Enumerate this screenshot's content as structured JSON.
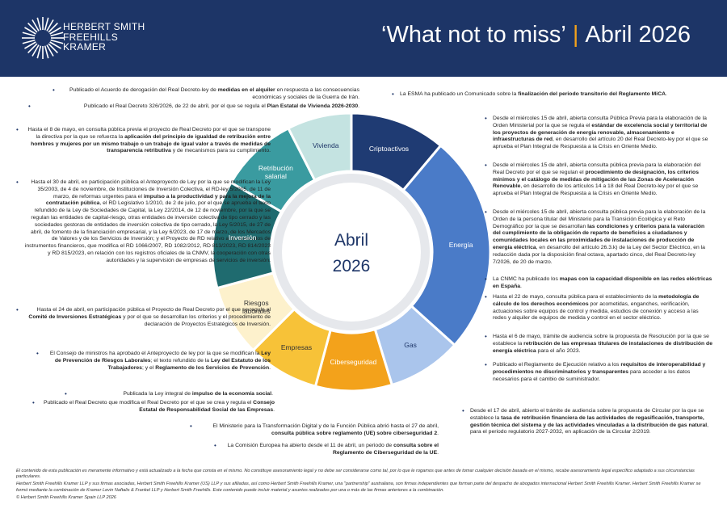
{
  "header": {
    "logo": [
      "HERBERT SMITH",
      "FREEHILLS",
      "KRAMER"
    ],
    "title": "‘What not to miss’",
    "separator": "|",
    "date": "Abril 2026"
  },
  "center": [
    "Abril",
    "2026"
  ],
  "segments": [
    "Criptoactivos",
    "Energía",
    "Gas",
    "Ciberseguridad",
    "Empresas",
    "Riesgos laborales",
    "Inversión",
    "Retribución salarial",
    "Vivienda"
  ],
  "notes": [
    {
      "runs": [
        "Publicado el Acuerdo de derogación del Real Decreto-ley de ",
        "medidas en el alquiler",
        " en respuesta a las consecuencias económicas y sociales de la Guerra de Irán."
      ]
    },
    {
      "runs": [
        "Publicado el Real Decreto 326/2026, de 22 de abril, por el que se regula el ",
        "Plan Estatal de Vivienda 2026-2030",
        "."
      ]
    },
    {
      "runs": [
        "Hasta el 8 de mayo, en consulta pública previa el proyecto de Real Decreto por el que se transpone la directiva por la que se refuerza la ",
        "aplicación del principio de igualdad de retribución entre hombres y mujeres por un mismo trabajo o un trabajo de igual valor a través de medidas de transparencia retributiva",
        " y de mecanismos para su cumplimiento."
      ]
    },
    {
      "runs": [
        "Hasta el 30 de abril, en participación pública el Anteproyecto de Ley por la que se modifican la Ley 35/2003, de 4 de noviembre, de Instituciones de Inversión Colectiva, el RD-ley 5/2005, de 11 de marzo, de reformas urgentes para el ",
        "impulso a la productividad y para la mejora de la contratación pública",
        ", el RD Legislativo 1/2010, de 2 de julio, por el que se aprueba el texto refundido de la Ley de Sociedades de Capital, la Ley 22/2014, de 12 de noviembre, por la que se regulan las entidades de capital-riesgo, otras entidades de inversión colectiva de tipo cerrado y las sociedades gestoras de entidades de inversión colectiva de tipo cerrado, la Ley 5/2015, de 27 de abril, de fomento de la financiación empresarial, y la Ley 6/2023, de 17 de marzo, de los Mercados de Valores y de los Servicios de Inversión; y el Proyecto de RD relativo a los mercados de instrumentos financieros, que modifica el RD 1066/2007, RD 1082/2012, RD 813/2023, RD 814/2023 y RD 815/2023, en relación con los registros oficiales de la CNMV, la cooperación con otras autoridades y la supervisión de empresas de servicios de inversión."
      ]
    },
    {
      "runs": [
        "Hasta el 24 de abril, en participación pública el Proyecto de Real Decreto por el que se regula el ",
        "Comité de Inversiones Estratégicas",
        " y por el que se desarrollan los criterios y el procedimiento de declaración de Proyectos Estratégicos de Inversión."
      ]
    },
    {
      "runs": [
        "El Consejo de ministros ha aprobado el Anteproyecto de ley por la que se modifican la ",
        "Ley de Prevención de Riesgos Laborales",
        "; el texto refundido de la ",
        "Ley del Estatuto de los Trabajadores",
        "; y el ",
        "Reglamento de los Servicios de Prevención",
        "."
      ]
    },
    {
      "runs": [
        "Publicada la Ley integral de ",
        "impulso de la economía social",
        "."
      ]
    },
    {
      "runs": [
        "Publicado el Real Decreto que modifica el Real Decreto por el que se crea y regula el ",
        "Consejo Estatal de Responsabilidad Social de las Empresas",
        "."
      ]
    },
    {
      "runs": [
        "El Ministerio para la Transformación Digital y de la Función Pública abrió hasta el 27 de abril, ",
        "consulta pública sobre reglamento (UE) sobre ciberseguridad 2",
        "."
      ]
    },
    {
      "runs": [
        "La Comisión Europea ha abierto desde el 11 de abril, un periodo de ",
        "consulta sobre el Reglamento de Ciberseguridad de la UE",
        "."
      ]
    },
    {
      "runs": [
        "La ESMA ha publicado un Comunicado sobre la ",
        "finalización del periodo transitorio del Reglamento MiCA",
        "."
      ]
    },
    {
      "runs": [
        "Desde el miércoles 15 de abril, abierta consulta Pública Previa para la elaboración de la Orden Ministerial por la que se regula el ",
        "estándar de excelencia social y territorial de los proyectos de generación de energía renovable, almacenamiento e infraestructuras de red",
        ", en desarrollo del artículo 20 del Real Decreto-ley por el que se aprueba el Plan Integral de Respuesta a la Crisis en Oriente Medio."
      ]
    },
    {
      "runs": [
        "Desde el miércoles 15 de abril, abierta consulta pública previa para la elaboración del Real Decreto por el que se regulan el ",
        "procedimiento de designación, los criterios mínimos y el catálogo de medidas de mitigación de las Zonas de Aceleración Renovable",
        ", en desarrollo de los artículos 14 a 18 del Real Decreto-ley por el que se aprueba el Plan Integral de Respuesta a la Crisis en Oriente Medio."
      ]
    },
    {
      "runs": [
        "Desde el miércoles 15 de abril, abierta consulta pública previa para la elaboración de la Orden de la persona titular del Ministerio para la Transición Ecológica y el Reto Demográfico por la que se desarrollan ",
        "las condiciones y criterios para la valoración del cumplimiento de la obligación de reparto de beneficios a ciudadanos y comunidades locales en las proximidades de instalaciones de producción de energía eléctrica",
        ", en desarrollo del artículo 26.3.k) de la Ley del Sector Eléctrico, en la redacción dada por la disposición final octava, apartado cinco, del Real Decreto-ley 7/2026, de 20 de marzo."
      ]
    },
    {
      "runs": [
        "La CNMC ha publicado los ",
        "mapas con la capacidad disponible en las redes eléctricas en España",
        "."
      ]
    },
    {
      "runs": [
        "Hasta el 22 de mayo, consulta pública para el establecimiento de la ",
        "metodología de cálculo de los derechos económicos",
        " por acometidas, enganches, verificación, actuaciones sobre equipos de control y medida, estudios de conexión y acceso a las redes y alquiler de equipos de medida y control en el sector eléctrico."
      ]
    },
    {
      "runs": [
        "Hasta el 6 de mayo, trámite de audiencia sobre la propuesta de Resolución por la que se establece la ",
        "retribución de las empresas titulares de instalaciones de distribución de energía eléctrica",
        " para el año 2023."
      ]
    },
    {
      "runs": [
        "Publicado el Reglamento de Ejecución relativo a los ",
        "requisitos de interoperabilidad y procedimientos no discriminatorios y transparentes",
        " para acceder a los datos necesarios para el cambio de suministrador."
      ]
    },
    {
      "runs": [
        "Desde el 17 de abril, abierto el trámite de audiencia sobre la propuesta de Circular por la que se establece la ",
        "tasa de retribución financiera de las actividades de regasificación, transporte, gestión técnica del sistema y de las actividades vinculadas a la distribución de gas natural",
        ", para el periodo regulatorio 2027-2032, en aplicación de la Circular 2/2019."
      ]
    }
  ],
  "footer": [
    "El contenido de esta publicación es meramente informativo y está actualizado a la fecha que consta en el mismo. No constituye asesoramiento legal y no debe ser considerarse como tal, por lo que le rogamos que antes de tomar cualquier decisión basada en el mismo, recabe asesoramiento legal específico adaptado a sus circunstancias particulares.",
    "Herbert Smith Freehills Kramer LLP y sus firmas asociadas, Herbert Smith Freehills Kramer (US) LLP y sus afiliadas, así como Herbert Smith Freehills Kramer, una \"partnership\" australiana, son firmas independientes que forman parte del despacho de abogados internacional Herbert Smith Freehills Kramer. Herbert Smith Freehills Kramer se formó mediante la combinación de Kramer Levin Naftalis & Frankel LLP y Herbert Smith Freehills. Este contenido puede incluir material y asuntos realizados por una o más de las firmas anteriores a la combinación.",
    "© Herbert Smith Freehills Kramer Spain LLP 2026"
  ]
}
